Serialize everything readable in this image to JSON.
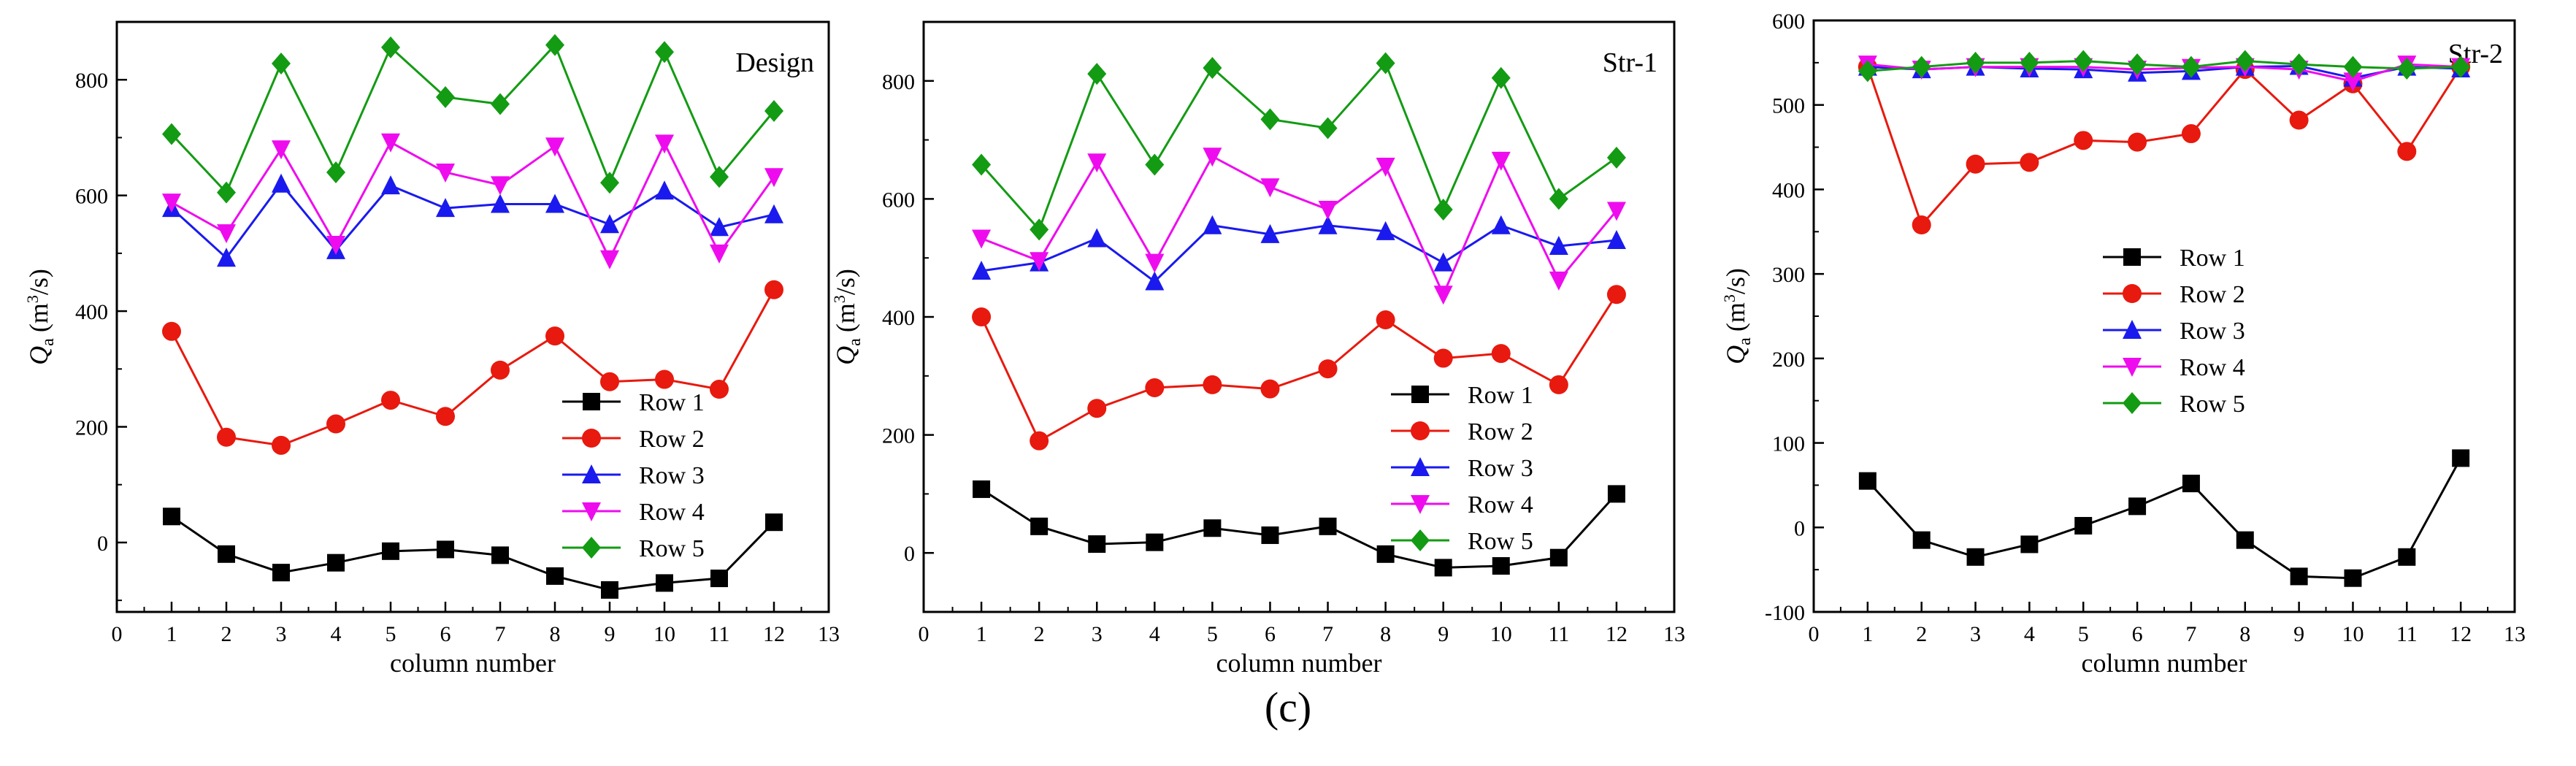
{
  "caption": "(c)",
  "colors": {
    "Row 1": "#000000",
    "Row 2": "#e8190e",
    "Row 3": "#1a1aee",
    "Row 4": "#ee0cee",
    "Row 5": "#139b13"
  },
  "markers": {
    "Row 1": "square",
    "Row 2": "circle",
    "Row 3": "triangle-up",
    "Row 4": "triangle-down",
    "Row 5": "diamond"
  },
  "chart_data": [
    {
      "type": "line",
      "title": "Design",
      "xlabel": "column number",
      "ylabel_main": "Q",
      "ylabel_sub": "a",
      "ylabel_unit": "(m",
      "ylabel_sup": "3",
      "ylabel_end": "/s)",
      "xlim": [
        0,
        13
      ],
      "ylim": [
        -120,
        900
      ],
      "xticks": [
        0,
        1,
        2,
        3,
        4,
        5,
        6,
        7,
        8,
        9,
        10,
        11,
        12,
        13
      ],
      "yticks": [
        0,
        200,
        400,
        600,
        800
      ],
      "legend": "bottom-right",
      "x": [
        1,
        2,
        3,
        4,
        5,
        6,
        7,
        8,
        9,
        10,
        11,
        12
      ],
      "series": [
        {
          "name": "Row 1",
          "values": [
            45,
            -20,
            -52,
            -35,
            -15,
            -12,
            -22,
            -58,
            -82,
            -70,
            -62,
            35
          ]
        },
        {
          "name": "Row 2",
          "values": [
            365,
            182,
            168,
            205,
            246,
            218,
            298,
            357,
            278,
            282,
            265,
            437
          ]
        },
        {
          "name": "Row 3",
          "values": [
            578,
            492,
            620,
            505,
            617,
            578,
            585,
            585,
            550,
            608,
            545,
            567
          ]
        },
        {
          "name": "Row 4",
          "values": [
            588,
            535,
            680,
            515,
            692,
            640,
            618,
            685,
            490,
            690,
            500,
            632
          ]
        },
        {
          "name": "Row 5",
          "values": [
            706,
            605,
            828,
            640,
            856,
            770,
            758,
            860,
            622,
            848,
            632,
            746
          ]
        }
      ]
    },
    {
      "type": "line",
      "title": "Str-1",
      "xlabel": "column number",
      "ylabel_main": "Q",
      "ylabel_sub": "a",
      "ylabel_unit": "(m",
      "ylabel_sup": "3",
      "ylabel_end": "/s)",
      "xlim": [
        0,
        13
      ],
      "ylim": [
        -100,
        900
      ],
      "xticks": [
        0,
        1,
        2,
        3,
        4,
        5,
        6,
        7,
        8,
        9,
        10,
        11,
        12,
        13
      ],
      "yticks": [
        0,
        200,
        400,
        600,
        800
      ],
      "legend": "bottom-right",
      "x": [
        1,
        2,
        3,
        4,
        5,
        6,
        7,
        8,
        9,
        10,
        11,
        12
      ],
      "series": [
        {
          "name": "Row 1",
          "values": [
            108,
            45,
            15,
            18,
            42,
            30,
            45,
            -2,
            -25,
            -22,
            -8,
            100
          ]
        },
        {
          "name": "Row 2",
          "values": [
            400,
            190,
            245,
            280,
            285,
            278,
            312,
            395,
            330,
            338,
            285,
            438
          ]
        },
        {
          "name": "Row 3",
          "values": [
            478,
            492,
            533,
            460,
            555,
            540,
            555,
            545,
            492,
            555,
            520,
            530
          ]
        },
        {
          "name": "Row 4",
          "values": [
            533,
            495,
            662,
            492,
            672,
            620,
            582,
            655,
            438,
            665,
            462,
            580
          ]
        },
        {
          "name": "Row 5",
          "values": [
            658,
            548,
            812,
            658,
            822,
            735,
            720,
            830,
            582,
            805,
            600,
            670
          ]
        }
      ]
    },
    {
      "type": "line",
      "title": "Str-2",
      "xlabel": "column number",
      "ylabel_main": "Q",
      "ylabel_sub": "a",
      "ylabel_unit": "(m",
      "ylabel_sup": "3",
      "ylabel_end": "/s)",
      "xlim": [
        0,
        13
      ],
      "ylim": [
        -100,
        600
      ],
      "xticks": [
        0,
        1,
        2,
        3,
        4,
        5,
        6,
        7,
        8,
        9,
        10,
        11,
        12,
        13
      ],
      "yticks": [
        -100,
        0,
        100,
        200,
        300,
        400,
        500,
        600
      ],
      "legend": "center-left",
      "x": [
        1,
        2,
        3,
        4,
        5,
        6,
        7,
        8,
        9,
        10,
        11,
        12
      ],
      "series": [
        {
          "name": "Row 1",
          "values": [
            55,
            -15,
            -35,
            -20,
            2,
            25,
            52,
            -15,
            -58,
            -60,
            -35,
            82
          ]
        },
        {
          "name": "Row 2",
          "values": [
            545,
            358,
            430,
            432,
            458,
            456,
            466,
            542,
            482,
            525,
            445,
            545
          ]
        },
        {
          "name": "Row 3",
          "values": [
            545,
            542,
            545,
            543,
            542,
            538,
            540,
            545,
            546,
            532,
            545,
            543
          ]
        },
        {
          "name": "Row 4",
          "values": [
            548,
            542,
            545,
            545,
            545,
            542,
            544,
            545,
            542,
            528,
            548,
            545
          ]
        },
        {
          "name": "Row 5",
          "values": [
            540,
            545,
            550,
            550,
            552,
            548,
            545,
            552,
            548,
            545,
            543,
            545
          ]
        }
      ]
    }
  ]
}
